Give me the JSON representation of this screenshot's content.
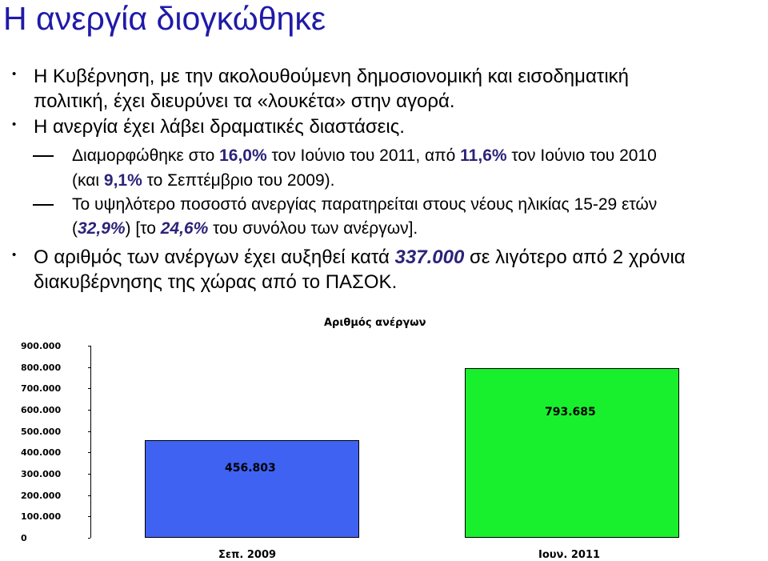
{
  "slide": {
    "title": "Η ανεργία διογκώθηκε",
    "b1": {
      "l1": "Η Κυβέρνηση, με την ακολουθούμενη δημοσιονομική και εισοδηματική",
      "l2": "πολιτική, έχει διευρύνει τα «λουκέτα» στην αγορά."
    },
    "b2": {
      "l1": "Η ανεργία έχει λάβει δραματικές διαστάσεις."
    },
    "s1": {
      "p1": "Διαμορφώθηκε στο ",
      "v1": "16,0%",
      "p2": " τον Ιούνιο του 2011, από ",
      "v2": "11,6%",
      "p3": " τον Ιούνιο του 2010",
      "p4": "(και ",
      "v3": "9,1%",
      "p5": " το Σεπτέμβριο του 2009)."
    },
    "s2": {
      "p1": "Το υψηλότερο ποσοστό ανεργίας παρατηρείται στους νέους ηλικίας 15-29 ετών",
      "p2": "(",
      "v1": "32,9%",
      "p3": ") [το ",
      "v2": "24,6%",
      "p4": " του συνόλου των ανέργων]."
    },
    "b3": {
      "p1": "Ο αριθμός των ανέργων έχει αυξηθεί κατά ",
      "v1": "337.000",
      "p2": " σε λιγότερο από 2 χρόνια",
      "l2": "διακυβέρνησης της χώρας από το ΠΑΣΟΚ."
    }
  },
  "chart_data": {
    "type": "bar",
    "title": "Αριθμός ανέργων",
    "categories": [
      "Σεπ. 2009",
      "Ιουν. 2011"
    ],
    "values": [
      456803,
      793685
    ],
    "value_labels": [
      "456.803",
      "793.685"
    ],
    "colors": [
      "#3f62f2",
      "#19f02d"
    ],
    "ylim": [
      0,
      900000
    ],
    "yticks": [
      0,
      100000,
      200000,
      300000,
      400000,
      500000,
      600000,
      700000,
      800000,
      900000
    ],
    "ytick_labels": [
      "0",
      "100.000",
      "200.000",
      "300.000",
      "400.000",
      "500.000",
      "600.000",
      "700.000",
      "800.000",
      "900.000"
    ],
    "grid": false,
    "legend": "none"
  }
}
